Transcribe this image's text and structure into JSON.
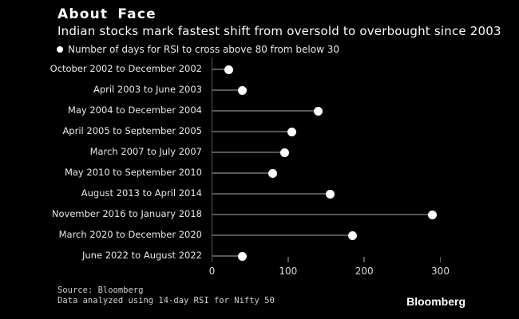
{
  "header": {
    "title": "About Face",
    "subtitle": "Indian stocks mark fastest shift from oversold to overbought since 2003"
  },
  "legend": {
    "label": "Number of days for RSI to cross above 80 from below 30"
  },
  "chart_data": {
    "type": "bar",
    "variant": "lollipop",
    "orientation": "horizontal",
    "title": "About Face",
    "subtitle": "Indian stocks mark fastest shift from oversold to overbought since 2003",
    "series_label": "Number of days for RSI to cross above 80 from below 30",
    "categories": [
      "October 2002 to December 2002",
      "April 2003 to June 2003",
      "May 2004 to December 2004",
      "April 2005 to September 2005",
      "March 2007 to July 2007",
      "May 2010 to September 2010",
      "August 2013 to April 2014",
      "November 2016 to January 2018",
      "March 2020 to December 2020",
      "June 2022 to August 2022"
    ],
    "values": [
      22,
      40,
      140,
      105,
      95,
      80,
      155,
      290,
      185,
      40
    ],
    "xlabel": "",
    "ylabel": "",
    "xlim": [
      0,
      300
    ],
    "xticks": [
      0,
      100,
      200,
      300
    ],
    "grid": false,
    "legend_position": "top-left"
  },
  "source": {
    "line1": "Source: Bloomberg",
    "line2": "Data analyzed using 14-day RSI for Nifty 50"
  },
  "branding": {
    "logo": "Bloomberg"
  },
  "colors": {
    "background": "#000000",
    "text": "#ffffff",
    "muted_text": "#e8e8e8",
    "axis": "#575757",
    "dot": "#ffffff"
  }
}
